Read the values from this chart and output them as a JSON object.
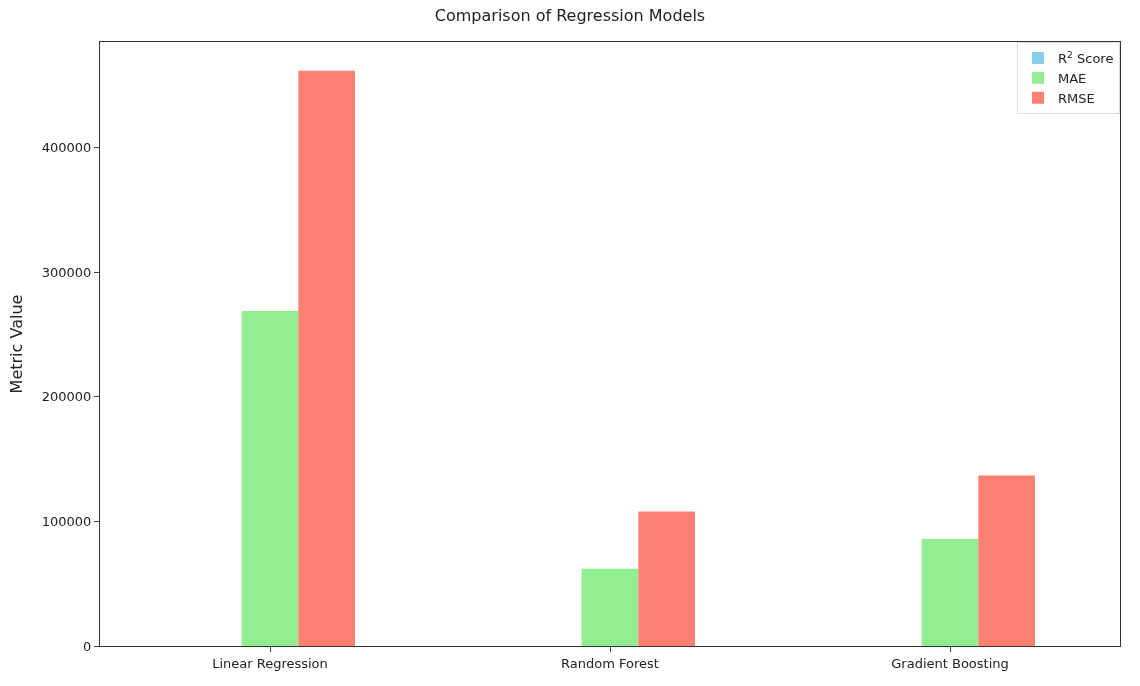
{
  "chart_data": {
    "type": "bar",
    "title": "Comparison of Regression Models",
    "ylabel": "Metric Value",
    "categories": [
      "Linear Regression",
      "Random Forest",
      "Gradient Boosting"
    ],
    "series": [
      {
        "name": "R$^{2}$ Score",
        "color": "#87ceeb",
        "values": [
          0,
          0,
          0
        ]
      },
      {
        "name": "MAE",
        "color": "#90ee90",
        "values": [
          269000,
          62000,
          86000
        ]
      },
      {
        "name": "RMSE",
        "color": "#fa8072",
        "values": [
          462000,
          108000,
          137000
        ]
      }
    ],
    "ylim": [
      0,
      485000
    ],
    "yticks": [
      0,
      100000,
      200000,
      300000,
      400000
    ],
    "grid": false,
    "legend": "top right"
  }
}
